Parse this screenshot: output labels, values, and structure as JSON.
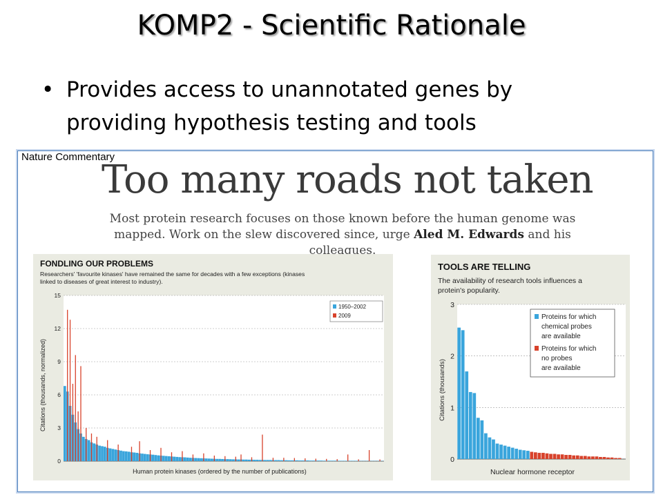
{
  "slide": {
    "title": "KOMP2 - Scientific Rationale",
    "bullet_char": "•",
    "bullet_line1": "Provides access to unannotated genes by",
    "bullet_line2": "providing hypothesis testing and tools"
  },
  "figure": {
    "source_label": "Nature Commentary",
    "headline": "Too many roads not taken",
    "standfirst_line1": "Most protein research focuses on those known before the human genome was",
    "standfirst_line2a": "mapped. Work on the slew discovered since, urge ",
    "standfirst_author": "Aled M. Edwards",
    "standfirst_line2b": " and his colleagues."
  },
  "colors": {
    "blue": "#3aa5dc",
    "red": "#d8422b",
    "panel_bg": "#eaebe2",
    "title_shadow": "#9a9a9a"
  },
  "chart_data": [
    {
      "type": "bar",
      "title": "FONDLING OUR PROBLEMS",
      "subtitle_line1": "Researchers' 'favourite kinases' have remained the same for decades with a few exceptions (kinases",
      "subtitle_line2": "linked to diseases of great interest to industry).",
      "xlabel": "Human protein kinases (ordered by the number of publications)",
      "ylabel": "Citations (thousands, normalized)",
      "ylim": [
        0,
        15
      ],
      "yticks": [
        "0",
        "3",
        "6",
        "9",
        "12",
        "15"
      ],
      "grid": true,
      "legend_position": "top-right",
      "series": [
        {
          "name": "1950–2002",
          "color": "#3aa5dc",
          "values": [
            6.8,
            6.3,
            5.0,
            4.2,
            3.5,
            2.9,
            2.5,
            2.2,
            2.0,
            1.9,
            1.7,
            1.6,
            1.5,
            1.4,
            1.35,
            1.3,
            1.2,
            1.15,
            1.1,
            1.05,
            1.0,
            0.95,
            0.9,
            0.88,
            0.85,
            0.8,
            0.78,
            0.75,
            0.7,
            0.68,
            0.65,
            0.62,
            0.6,
            0.58,
            0.55,
            0.52,
            0.5,
            0.48,
            0.46,
            0.44,
            0.42,
            0.4,
            0.38,
            0.36,
            0.35,
            0.34,
            0.32,
            0.3,
            0.29,
            0.28,
            0.27,
            0.26,
            0.25,
            0.24,
            0.23,
            0.22,
            0.21,
            0.2,
            0.2,
            0.19,
            0.18,
            0.18,
            0.17,
            0.16,
            0.16,
            0.15,
            0.15,
            0.14,
            0.14,
            0.13,
            0.13,
            0.12,
            0.12,
            0.11,
            0.11,
            0.1,
            0.1,
            0.1,
            0.09,
            0.09,
            0.09,
            0.08,
            0.08,
            0.08,
            0.07,
            0.07,
            0.07,
            0.07,
            0.06,
            0.06,
            0.06,
            0.06,
            0.05,
            0.05,
            0.05,
            0.05,
            0.05,
            0.04,
            0.04,
            0.04,
            0.04,
            0.04,
            0.04,
            0.03,
            0.03,
            0.03,
            0.03,
            0.03,
            0.03,
            0.03,
            0.03,
            0.02,
            0.02,
            0.02,
            0.02,
            0.02,
            0.02,
            0.02,
            0.02,
            0.02
          ]
        },
        {
          "name": "2009",
          "color": "#d8422b",
          "points": [
            [
              1,
              13.7
            ],
            [
              2,
              12.8
            ],
            [
              3,
              7.0
            ],
            [
              4,
              9.6
            ],
            [
              5,
              4.5
            ],
            [
              6,
              8.6
            ],
            [
              8,
              3.0
            ],
            [
              10,
              2.5
            ],
            [
              12,
              2.2
            ],
            [
              16,
              1.9
            ],
            [
              20,
              1.5
            ],
            [
              25,
              1.3
            ],
            [
              28,
              1.8
            ],
            [
              32,
              1.0
            ],
            [
              36,
              1.2
            ],
            [
              40,
              0.8
            ],
            [
              44,
              0.9
            ],
            [
              48,
              0.6
            ],
            [
              52,
              0.7
            ],
            [
              56,
              0.5
            ],
            [
              60,
              0.45
            ],
            [
              64,
              0.4
            ],
            [
              66,
              0.6
            ],
            [
              70,
              0.35
            ],
            [
              74,
              2.4
            ],
            [
              78,
              0.3
            ],
            [
              82,
              0.3
            ],
            [
              86,
              0.28
            ],
            [
              90,
              0.25
            ],
            [
              94,
              0.22
            ],
            [
              98,
              0.2
            ],
            [
              102,
              0.18
            ],
            [
              106,
              0.6
            ],
            [
              110,
              0.16
            ],
            [
              114,
              1.0
            ],
            [
              118,
              0.15
            ]
          ]
        }
      ]
    },
    {
      "type": "bar",
      "title": "TOOLS ARE TELLING",
      "subtitle_line1": "The availability of research tools influences a",
      "subtitle_line2": "protein's popularity.",
      "xlabel": "Nuclear hormone receptor",
      "ylabel": "Citations (thousands)",
      "ylim": [
        0,
        3
      ],
      "yticks": [
        "0",
        "1",
        "2",
        "3"
      ],
      "grid": true,
      "legend_position": "top-right",
      "series": [
        {
          "name": "Proteins for which chemical probes are available",
          "color": "#3aa5dc",
          "values": [
            2.55,
            2.5,
            1.7,
            1.3,
            1.28,
            0.8,
            0.75,
            0.5,
            0.42,
            0.38,
            0.3,
            0.28,
            0.26,
            0.24,
            0.22,
            0.2,
            0.18,
            0.17,
            0.16
          ]
        },
        {
          "name": "Proteins for which no probes are available",
          "color": "#d8422b",
          "values": [
            0.14,
            0.13,
            0.12,
            0.12,
            0.11,
            0.1,
            0.1,
            0.09,
            0.09,
            0.08,
            0.08,
            0.07,
            0.07,
            0.06,
            0.06,
            0.05,
            0.05,
            0.05,
            0.04,
            0.04,
            0.03,
            0.03,
            0.02,
            0.02
          ]
        }
      ]
    }
  ]
}
